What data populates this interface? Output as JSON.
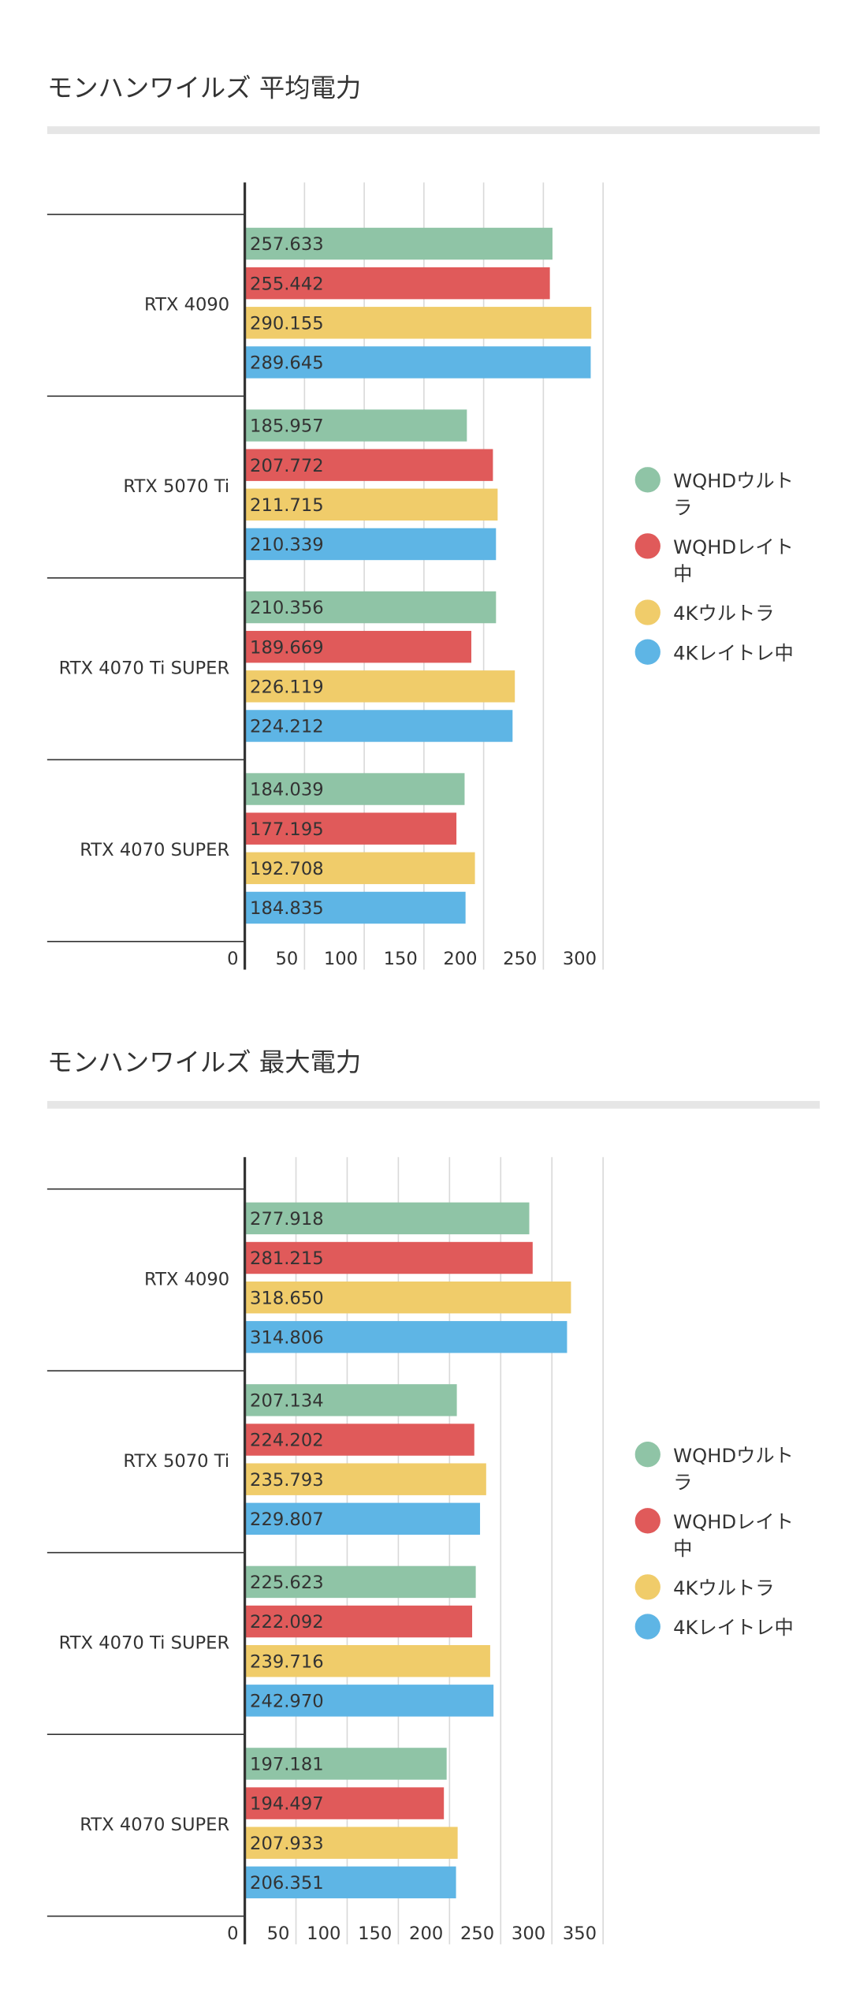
{
  "chart_data": [
    {
      "type": "bar",
      "orientation": "horizontal",
      "title": "モンハンワイルズ 平均電力",
      "categories": [
        "RTX 4090",
        "RTX 5070 Ti",
        "RTX 4070 Ti SUPER",
        "RTX 4070 SUPER"
      ],
      "series": [
        {
          "name": "WQHDウルトラ",
          "color": "#8fc4a6",
          "values": [
            257.633,
            185.957,
            210.356,
            184.039
          ],
          "value_labels": [
            "257.633",
            "185.957",
            "210.356",
            "184.039"
          ]
        },
        {
          "name": "WQHDレイト中",
          "color": "#e05a5a",
          "values": [
            255.442,
            207.772,
            189.669,
            177.195
          ],
          "value_labels": [
            "255.442",
            "207.772",
            "189.669",
            "177.195"
          ]
        },
        {
          "name": "4Kウルトラ",
          "color": "#f0cc6a",
          "values": [
            290.155,
            211.715,
            226.119,
            192.708
          ],
          "value_labels": [
            "290.155",
            "211.715",
            "226.119",
            "192.708"
          ]
        },
        {
          "name": "4Kレイトレ中",
          "color": "#5eb5e5",
          "values": [
            289.645,
            210.339,
            224.212,
            184.835
          ],
          "value_labels": [
            "289.645",
            "210.339",
            "224.212",
            "184.835"
          ]
        }
      ],
      "xlim": [
        0,
        300
      ],
      "xticks": [
        0,
        50,
        100,
        150,
        200,
        250,
        300
      ],
      "grid": true,
      "legend": "right"
    },
    {
      "type": "bar",
      "orientation": "horizontal",
      "title": "モンハンワイルズ 最大電力",
      "categories": [
        "RTX 4090",
        "RTX 5070 Ti",
        "RTX 4070 Ti SUPER",
        "RTX 4070 SUPER"
      ],
      "series": [
        {
          "name": "WQHDウルトラ",
          "color": "#8fc4a6",
          "values": [
            277.918,
            207.134,
            225.623,
            197.181
          ],
          "value_labels": [
            "277.918",
            "207.134",
            "225.623",
            "197.181"
          ]
        },
        {
          "name": "WQHDレイト中",
          "color": "#e05a5a",
          "values": [
            281.215,
            224.202,
            222.092,
            194.497
          ],
          "value_labels": [
            "281.215",
            "224.202",
            "222.092",
            "194.497"
          ]
        },
        {
          "name": "4Kウルトラ",
          "color": "#f0cc6a",
          "values": [
            318.65,
            235.793,
            239.716,
            207.933
          ],
          "value_labels": [
            "318.650",
            "235.793",
            "239.716",
            "207.933"
          ]
        },
        {
          "name": "4Kレイトレ中",
          "color": "#5eb5e5",
          "values": [
            314.806,
            229.807,
            242.97,
            206.351
          ],
          "value_labels": [
            "314.806",
            "229.807",
            "242.970",
            "206.351"
          ]
        }
      ],
      "xlim": [
        0,
        350
      ],
      "xticks": [
        0,
        50,
        100,
        150,
        200,
        250,
        300,
        350
      ],
      "grid": true,
      "legend": "right"
    }
  ]
}
